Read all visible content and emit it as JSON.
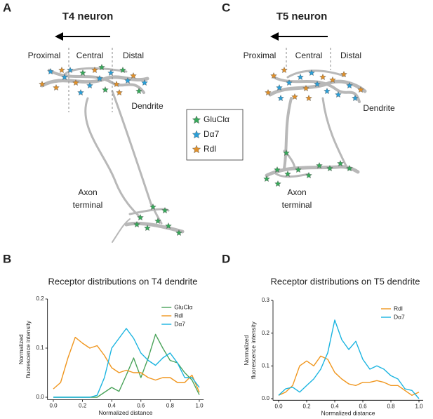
{
  "panels": [
    {
      "label": "A",
      "title": "T4 neuron",
      "regions": [
        "Proximal",
        "Central",
        "Distal"
      ],
      "dendrite": "Dendrite",
      "axon": [
        "Axon",
        "terminal"
      ]
    },
    {
      "label": "C",
      "title": "T5 neuron",
      "regions": [
        "Proximal",
        "Central",
        "Distal"
      ],
      "dendrite": "Dendrite",
      "axon": [
        "Axon",
        "terminal"
      ]
    }
  ],
  "legend": [
    {
      "name": "GluClα",
      "color": "#37a85a"
    },
    {
      "name": "Dα7",
      "color": "#2a9fd8"
    },
    {
      "name": "Rdl",
      "color": "#e0902a"
    }
  ],
  "chart_data": [
    {
      "type": "line",
      "panel_label": "B",
      "title": "Receptor distributions on T4 dendrite",
      "xlabel": "Normalized distance",
      "ylabel": [
        "Normalized",
        "fluorescence intensity"
      ],
      "x": [
        0,
        0.05,
        0.1,
        0.15,
        0.2,
        0.25,
        0.3,
        0.35,
        0.4,
        0.45,
        0.5,
        0.55,
        0.6,
        0.65,
        0.7,
        0.75,
        0.8,
        0.85,
        0.9,
        0.95,
        1.0
      ],
      "xlim": [
        -0.04,
        1.03
      ],
      "xticks": [
        {
          "value": 0,
          "label": "0.0"
        },
        0.2,
        0.4,
        0.6,
        0.8,
        {
          "value": 1,
          "label": "1.0"
        }
      ],
      "ylim": [
        -0.005,
        0.2
      ],
      "yticks": [
        {
          "value": 0,
          "label": "0.0"
        },
        0.1,
        0.2
      ],
      "legend": "upper right",
      "series": [
        {
          "name": "GluClα",
          "color": "#4aa35a",
          "values": [
            0,
            0,
            0,
            0,
            0,
            0,
            0,
            0.01,
            0.02,
            0.012,
            0.045,
            0.08,
            0.04,
            0.08,
            0.128,
            0.1,
            0.075,
            0.07,
            0.05,
            0.035,
            0.005
          ]
        },
        {
          "name": "Rdl",
          "color": "#f0961e",
          "values": [
            0.017,
            0.03,
            0.08,
            0.122,
            0.11,
            0.1,
            0.105,
            0.085,
            0.06,
            0.05,
            0.055,
            0.05,
            0.05,
            0.04,
            0.035,
            0.04,
            0.04,
            0.03,
            0.03,
            0.045,
            0.01
          ]
        },
        {
          "name": "Dα7",
          "color": "#1ab4e0",
          "values": [
            0,
            0,
            0,
            0,
            0,
            0,
            0.004,
            0.04,
            0.1,
            0.12,
            0.14,
            0.12,
            0.09,
            0.075,
            0.065,
            0.08,
            0.09,
            0.07,
            0.04,
            0.04,
            0.02
          ]
        }
      ]
    },
    {
      "type": "line",
      "panel_label": "D",
      "title": "Receptor distributions on T5 dendrite",
      "xlabel": "Normalized distance",
      "ylabel": [
        "Normalized",
        "fluorescence intensity"
      ],
      "x": [
        0,
        0.05,
        0.1,
        0.15,
        0.2,
        0.25,
        0.3,
        0.35,
        0.4,
        0.45,
        0.5,
        0.55,
        0.6,
        0.65,
        0.7,
        0.75,
        0.8,
        0.85,
        0.9,
        0.95,
        1.0
      ],
      "xlim": [
        -0.04,
        1.03
      ],
      "xticks": [
        {
          "value": 0,
          "label": "0.0"
        },
        0.2,
        0.4,
        0.6,
        0.8,
        {
          "value": 1,
          "label": "1.0"
        }
      ],
      "ylim": [
        -0.005,
        0.3
      ],
      "yticks": [
        {
          "value": 0,
          "label": "0.0"
        },
        0.1,
        0.2,
        0.3
      ],
      "legend": "upper right",
      "series": [
        {
          "name": "Rdl",
          "color": "#f0961e",
          "values": [
            0.01,
            0.02,
            0.04,
            0.1,
            0.115,
            0.1,
            0.13,
            0.12,
            0.08,
            0.06,
            0.045,
            0.04,
            0.05,
            0.05,
            0.055,
            0.05,
            0.04,
            0.04,
            0.025,
            0.01,
            0.02
          ]
        },
        {
          "name": "Dα7",
          "color": "#1ab4e0",
          "values": [
            0.01,
            0.03,
            0.035,
            0.02,
            0.04,
            0.06,
            0.09,
            0.14,
            0.24,
            0.18,
            0.15,
            0.175,
            0.12,
            0.09,
            0.1,
            0.09,
            0.07,
            0.06,
            0.03,
            0.025,
            0
          ]
        }
      ]
    }
  ]
}
